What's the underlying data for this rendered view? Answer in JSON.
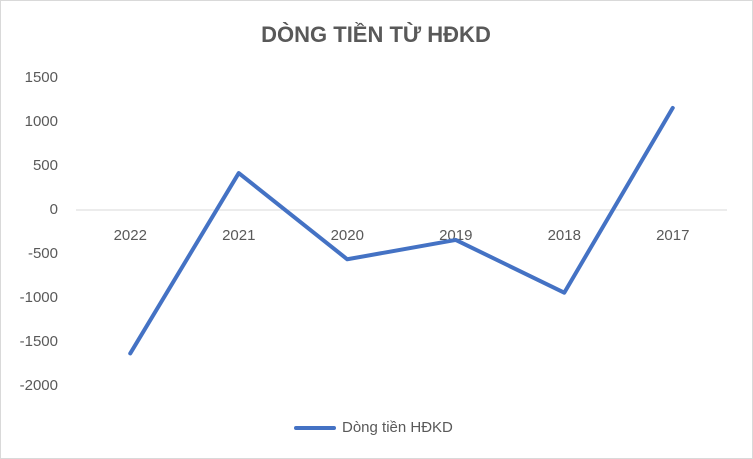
{
  "chart_data": {
    "type": "line",
    "title": "DÒNG TIỀN TỪ HĐKD",
    "categories": [
      "2022",
      "2021",
      "2020",
      "2019",
      "2018",
      "2017"
    ],
    "series": [
      {
        "name": "Dòng tiền HĐKD",
        "color": "#4472c4",
        "values": [
          -1630,
          420,
          -560,
          -340,
          -940,
          1160
        ]
      }
    ],
    "ylim": [
      -2000,
      1500
    ],
    "yticks": [
      -2000,
      -1500,
      -1000,
      -500,
      0,
      500,
      1000,
      1500
    ],
    "grid": false,
    "legend": "bottom"
  }
}
